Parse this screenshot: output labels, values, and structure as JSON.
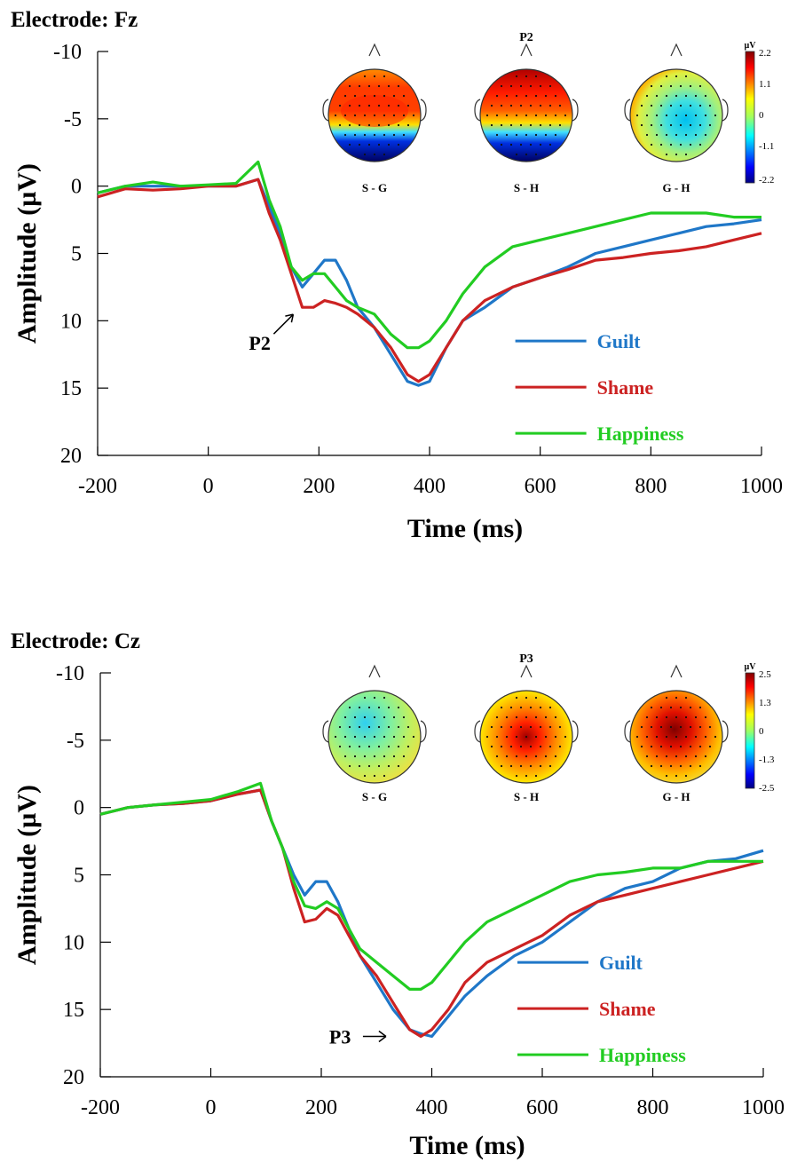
{
  "chart_data": [
    {
      "type": "line",
      "title": "Electrode: Fz",
      "xlabel": "Time (ms)",
      "ylabel": "Amplitude (µV)",
      "xlim": [
        -200,
        1000
      ],
      "ylim": [
        -10,
        20
      ],
      "y_inverted": true,
      "x_ticks": [
        -200,
        0,
        200,
        400,
        600,
        800,
        1000
      ],
      "y_ticks": [
        -10,
        -5,
        0,
        5,
        10,
        15,
        20
      ],
      "legend_position": "bottom-right",
      "annotation": {
        "text": "P2",
        "x": 160,
        "y": 9
      },
      "series": [
        {
          "name": "Guilt",
          "color": "#1f77c8",
          "points": [
            [
              -200,
              0.5
            ],
            [
              -150,
              0
            ],
            [
              -100,
              0
            ],
            [
              -50,
              0
            ],
            [
              0,
              0
            ],
            [
              50,
              0
            ],
            [
              90,
              -0.5
            ],
            [
              110,
              1.5
            ],
            [
              130,
              3.5
            ],
            [
              150,
              6
            ],
            [
              170,
              7.5
            ],
            [
              190,
              6.5
            ],
            [
              210,
              5.5
            ],
            [
              230,
              5.5
            ],
            [
              250,
              7
            ],
            [
              270,
              9
            ],
            [
              300,
              10.5
            ],
            [
              330,
              12.5
            ],
            [
              360,
              14.5
            ],
            [
              380,
              14.8
            ],
            [
              400,
              14.5
            ],
            [
              430,
              12
            ],
            [
              460,
              10
            ],
            [
              500,
              9
            ],
            [
              550,
              7.5
            ],
            [
              600,
              6.8
            ],
            [
              650,
              6
            ],
            [
              700,
              5
            ],
            [
              750,
              4.5
            ],
            [
              800,
              4
            ],
            [
              850,
              3.5
            ],
            [
              900,
              3
            ],
            [
              950,
              2.8
            ],
            [
              1000,
              2.5
            ]
          ]
        },
        {
          "name": "Shame",
          "color": "#cc2222",
          "points": [
            [
              -200,
              0.8
            ],
            [
              -150,
              0.2
            ],
            [
              -100,
              0.3
            ],
            [
              -50,
              0.2
            ],
            [
              0,
              0
            ],
            [
              50,
              0
            ],
            [
              90,
              -0.5
            ],
            [
              110,
              2
            ],
            [
              130,
              4
            ],
            [
              150,
              6.5
            ],
            [
              170,
              9
            ],
            [
              190,
              9
            ],
            [
              210,
              8.5
            ],
            [
              230,
              8.7
            ],
            [
              250,
              9
            ],
            [
              270,
              9.5
            ],
            [
              300,
              10.5
            ],
            [
              330,
              12
            ],
            [
              360,
              14
            ],
            [
              380,
              14.5
            ],
            [
              400,
              14
            ],
            [
              430,
              12
            ],
            [
              460,
              10
            ],
            [
              500,
              8.5
            ],
            [
              550,
              7.5
            ],
            [
              600,
              6.8
            ],
            [
              650,
              6.2
            ],
            [
              700,
              5.5
            ],
            [
              750,
              5.3
            ],
            [
              800,
              5
            ],
            [
              850,
              4.8
            ],
            [
              900,
              4.5
            ],
            [
              950,
              4
            ],
            [
              1000,
              3.5
            ]
          ]
        },
        {
          "name": "Happiness",
          "color": "#22cc22",
          "points": [
            [
              -200,
              0.5
            ],
            [
              -150,
              0
            ],
            [
              -100,
              -0.3
            ],
            [
              -50,
              0
            ],
            [
              0,
              -0.1
            ],
            [
              50,
              -0.2
            ],
            [
              90,
              -1.8
            ],
            [
              110,
              1
            ],
            [
              130,
              3
            ],
            [
              150,
              6
            ],
            [
              170,
              7
            ],
            [
              190,
              6.5
            ],
            [
              210,
              6.5
            ],
            [
              230,
              7.5
            ],
            [
              250,
              8.5
            ],
            [
              270,
              9
            ],
            [
              300,
              9.5
            ],
            [
              330,
              11
            ],
            [
              360,
              12
            ],
            [
              380,
              12
            ],
            [
              400,
              11.5
            ],
            [
              430,
              10
            ],
            [
              460,
              8
            ],
            [
              500,
              6
            ],
            [
              550,
              4.5
            ],
            [
              600,
              4
            ],
            [
              650,
              3.5
            ],
            [
              700,
              3
            ],
            [
              750,
              2.5
            ],
            [
              800,
              2
            ],
            [
              850,
              2
            ],
            [
              900,
              2
            ],
            [
              950,
              2.3
            ],
            [
              1000,
              2.3
            ]
          ]
        }
      ],
      "topomaps": {
        "header": "P2",
        "unit": "µV",
        "scale_labels": [
          "2.2",
          "1.1",
          "0",
          "-1.1",
          "-2.2"
        ],
        "maps": [
          {
            "label": "S - G",
            "pattern": "front-positive-back-negative"
          },
          {
            "label": "S - H",
            "pattern": "front-positive-back-negative"
          },
          {
            "label": "G - H",
            "pattern": "weak-central-negative"
          }
        ]
      }
    },
    {
      "type": "line",
      "title": "Electrode: Cz",
      "xlabel": "Time (ms)",
      "ylabel": "Amplitude (µV)",
      "xlim": [
        -200,
        1000
      ],
      "ylim": [
        -10,
        20
      ],
      "y_inverted": true,
      "x_ticks": [
        -200,
        0,
        200,
        400,
        600,
        800,
        1000
      ],
      "y_ticks": [
        -10,
        -5,
        0,
        5,
        10,
        15,
        20
      ],
      "legend_position": "bottom-right",
      "annotation": {
        "text": "P3",
        "x": 330,
        "y": 17
      },
      "series": [
        {
          "name": "Guilt",
          "color": "#1f77c8",
          "points": [
            [
              -200,
              0.5
            ],
            [
              -150,
              0
            ],
            [
              -100,
              -0.2
            ],
            [
              -50,
              -0.3
            ],
            [
              0,
              -0.5
            ],
            [
              50,
              -1
            ],
            [
              90,
              -1.3
            ],
            [
              110,
              1
            ],
            [
              130,
              3
            ],
            [
              150,
              5
            ],
            [
              170,
              6.5
            ],
            [
              190,
              5.5
            ],
            [
              210,
              5.5
            ],
            [
              230,
              7
            ],
            [
              250,
              9
            ],
            [
              270,
              11
            ],
            [
              300,
              13
            ],
            [
              330,
              15
            ],
            [
              360,
              16.5
            ],
            [
              380,
              16.8
            ],
            [
              400,
              17
            ],
            [
              430,
              15.5
            ],
            [
              460,
              14
            ],
            [
              500,
              12.5
            ],
            [
              550,
              11
            ],
            [
              600,
              10
            ],
            [
              650,
              8.5
            ],
            [
              700,
              7
            ],
            [
              750,
              6
            ],
            [
              800,
              5.5
            ],
            [
              850,
              4.5
            ],
            [
              900,
              4
            ],
            [
              950,
              3.8
            ],
            [
              1000,
              3.2
            ]
          ]
        },
        {
          "name": "Shame",
          "color": "#cc2222",
          "points": [
            [
              -200,
              0.5
            ],
            [
              -150,
              0
            ],
            [
              -100,
              -0.2
            ],
            [
              -50,
              -0.3
            ],
            [
              0,
              -0.5
            ],
            [
              50,
              -1
            ],
            [
              90,
              -1.3
            ],
            [
              110,
              1
            ],
            [
              130,
              3
            ],
            [
              150,
              6
            ],
            [
              170,
              8.5
            ],
            [
              190,
              8.3
            ],
            [
              210,
              7.5
            ],
            [
              230,
              8
            ],
            [
              250,
              9.5
            ],
            [
              270,
              11
            ],
            [
              300,
              12.5
            ],
            [
              330,
              14.5
            ],
            [
              360,
              16.5
            ],
            [
              380,
              17
            ],
            [
              400,
              16.5
            ],
            [
              430,
              15
            ],
            [
              460,
              13
            ],
            [
              500,
              11.5
            ],
            [
              550,
              10.5
            ],
            [
              600,
              9.5
            ],
            [
              650,
              8
            ],
            [
              700,
              7
            ],
            [
              750,
              6.5
            ],
            [
              800,
              6
            ],
            [
              850,
              5.5
            ],
            [
              900,
              5
            ],
            [
              950,
              4.5
            ],
            [
              1000,
              4
            ]
          ]
        },
        {
          "name": "Happiness",
          "color": "#22cc22",
          "points": [
            [
              -200,
              0.5
            ],
            [
              -150,
              0
            ],
            [
              -100,
              -0.2
            ],
            [
              -50,
              -0.4
            ],
            [
              0,
              -0.6
            ],
            [
              50,
              -1.2
            ],
            [
              90,
              -1.8
            ],
            [
              110,
              1
            ],
            [
              130,
              3
            ],
            [
              150,
              5.5
            ],
            [
              170,
              7.3
            ],
            [
              190,
              7.5
            ],
            [
              210,
              7
            ],
            [
              230,
              7.5
            ],
            [
              250,
              9
            ],
            [
              270,
              10.5
            ],
            [
              300,
              11.5
            ],
            [
              330,
              12.5
            ],
            [
              360,
              13.5
            ],
            [
              380,
              13.5
            ],
            [
              400,
              13
            ],
            [
              430,
              11.5
            ],
            [
              460,
              10
            ],
            [
              500,
              8.5
            ],
            [
              550,
              7.5
            ],
            [
              600,
              6.5
            ],
            [
              650,
              5.5
            ],
            [
              700,
              5
            ],
            [
              750,
              4.8
            ],
            [
              800,
              4.5
            ],
            [
              850,
              4.5
            ],
            [
              900,
              4
            ],
            [
              950,
              4
            ],
            [
              1000,
              4
            ]
          ]
        }
      ],
      "topomaps": {
        "header": "P3",
        "unit": "µV",
        "scale_labels": [
          "2.5",
          "1.3",
          "0",
          "-1.3",
          "-2.5"
        ],
        "maps": [
          {
            "label": "S - G",
            "pattern": "weak-mixed"
          },
          {
            "label": "S - H",
            "pattern": "central-positive"
          },
          {
            "label": "G - H",
            "pattern": "strong-central-positive"
          }
        ]
      }
    }
  ]
}
